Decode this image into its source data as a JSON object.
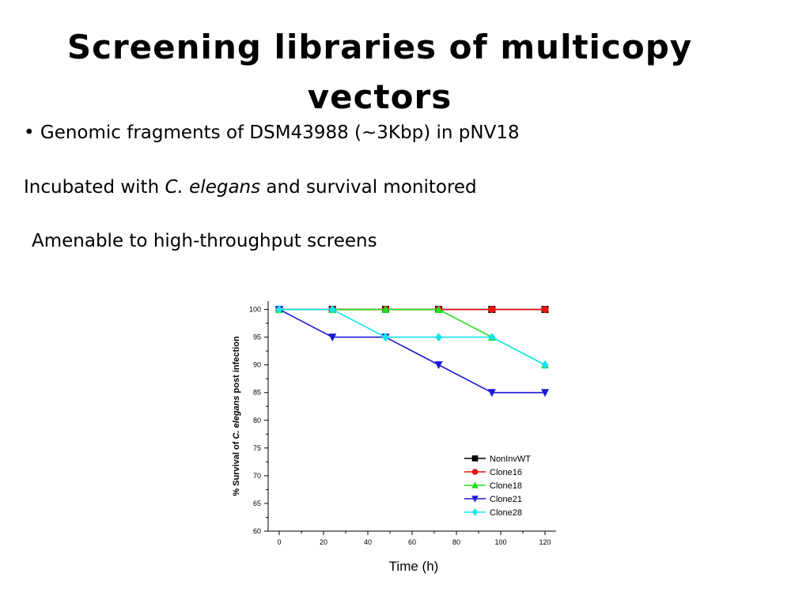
{
  "slide": {
    "title_line1": "Screening libraries of multicopy",
    "title_line2": "vectors",
    "bullet1": "• Genomic fragments of DSM43988 (~3Kbp) in pNV18",
    "line2_before": "Incubated with ",
    "line2_italic": "C. elegans",
    "line2_after": " and survival monitored",
    "line3": "Amenable to high-throughput screens"
  },
  "chart_data": {
    "type": "line",
    "xlabel": "Time (h)",
    "ylabel_before": "% Survival of ",
    "ylabel_italic": "C. elegans",
    "ylabel_after": " post infection",
    "xlim": [
      -5,
      125
    ],
    "ylim": [
      60,
      101.5
    ],
    "x_ticks": [
      0,
      20,
      40,
      60,
      80,
      100,
      120
    ],
    "y_ticks": [
      60,
      65,
      70,
      75,
      80,
      85,
      90,
      95,
      100
    ],
    "legend_position": "lower-right",
    "grid": false,
    "series": [
      {
        "name": "NonInvWT",
        "color": "#000000",
        "marker": "square",
        "x": [
          0,
          24,
          48,
          72,
          96,
          120
        ],
        "y": [
          100,
          100,
          100,
          100,
          100,
          100
        ]
      },
      {
        "name": "Clone16",
        "color": "#ee1111",
        "marker": "circle",
        "x": [
          0,
          24,
          48,
          72,
          96,
          120
        ],
        "y": [
          100,
          100,
          100,
          100,
          100,
          100
        ]
      },
      {
        "name": "Clone18",
        "color": "#22dd22",
        "marker": "triangle-up",
        "x": [
          0,
          24,
          48,
          72,
          96,
          120
        ],
        "y": [
          100,
          100,
          100,
          100,
          95,
          90
        ]
      },
      {
        "name": "Clone21",
        "color": "#1a1ad4",
        "marker": "triangle-down",
        "x": [
          0,
          24,
          48,
          72,
          96,
          120
        ],
        "y": [
          100,
          95,
          95,
          90,
          85,
          85
        ]
      },
      {
        "name": "Clone28",
        "color": "#11e6ee",
        "marker": "diamond",
        "x": [
          0,
          24,
          48,
          72,
          96,
          120
        ],
        "y": [
          100,
          100,
          95,
          95,
          95,
          90
        ]
      }
    ]
  }
}
